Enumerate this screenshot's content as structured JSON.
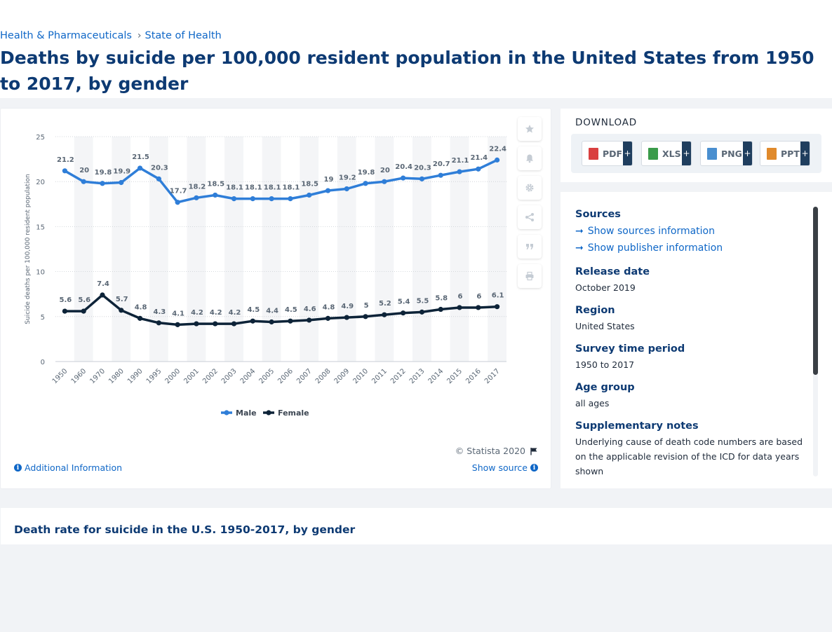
{
  "breadcrumb": {
    "item1": "Health & Pharmaceuticals",
    "item2": "State of Health"
  },
  "page_title": "Deaths by suicide per 100,000 resident population in the United States from 1950 to 2017, by gender",
  "chart_data": {
    "type": "line",
    "categories": [
      "1950",
      "1960",
      "1970",
      "1980",
      "1990",
      "1995",
      "2000",
      "2001",
      "2002",
      "2003",
      "2004",
      "2005",
      "2006",
      "2007",
      "2008",
      "2009",
      "2010",
      "2011",
      "2012",
      "2013",
      "2014",
      "2015",
      "2016",
      "2017"
    ],
    "series": [
      {
        "name": "Male",
        "color": "#2f7ed8",
        "values": [
          21.2,
          20,
          19.8,
          19.9,
          21.5,
          20.3,
          17.7,
          18.2,
          18.5,
          18.1,
          18.1,
          18.1,
          18.1,
          18.5,
          19,
          19.2,
          19.8,
          20,
          20.4,
          20.3,
          20.7,
          21.1,
          21.4,
          22.4
        ]
      },
      {
        "name": "Female",
        "color": "#0d2338",
        "values": [
          5.6,
          5.6,
          7.4,
          5.7,
          4.8,
          4.3,
          4.1,
          4.2,
          4.2,
          4.2,
          4.5,
          4.4,
          4.5,
          4.6,
          4.8,
          4.9,
          5,
          5.2,
          5.4,
          5.5,
          5.8,
          6,
          6,
          6.1
        ]
      }
    ],
    "ylabel": "Suicide deaths per 100,000 resident population",
    "xlabel": "",
    "ylim": [
      0,
      25
    ],
    "yticks": [
      0,
      5,
      10,
      15,
      20,
      25
    ],
    "grid": "horizontal dotted",
    "legend": "bottom-center"
  },
  "toolbar": {
    "icons": [
      "star-icon",
      "bell-icon",
      "gear-icon",
      "share-icon",
      "quote-icon",
      "print-icon"
    ]
  },
  "chart_footer": {
    "copyright": "© Statista 2020",
    "additional_info": "Additional Information",
    "show_source": "Show source"
  },
  "download": {
    "title": "DOWNLOAD",
    "buttons": [
      {
        "label": "PDF",
        "plus": "+",
        "color": "#d94040"
      },
      {
        "label": "XLS",
        "plus": "+",
        "color": "#3a9b4a"
      },
      {
        "label": "PNG",
        "plus": "+",
        "color": "#4a8fd0"
      },
      {
        "label": "PPT",
        "plus": "+",
        "color": "#e08a2c"
      }
    ]
  },
  "info": {
    "sources_heading": "Sources",
    "show_sources": "Show sources information",
    "show_publisher": "Show publisher information",
    "release_heading": "Release date",
    "release_value": "October 2019",
    "region_heading": "Region",
    "region_value": "United States",
    "period_heading": "Survey time period",
    "period_value": "1950 to 2017",
    "age_heading": "Age group",
    "age_value": "all ages",
    "notes_heading": "Supplementary notes",
    "notes_value": "Underlying cause of death code numbers are based on the applicable revision of the ICD for data years shown"
  },
  "related": {
    "title": "Death rate for suicide in the U.S. 1950-2017, by gender"
  }
}
